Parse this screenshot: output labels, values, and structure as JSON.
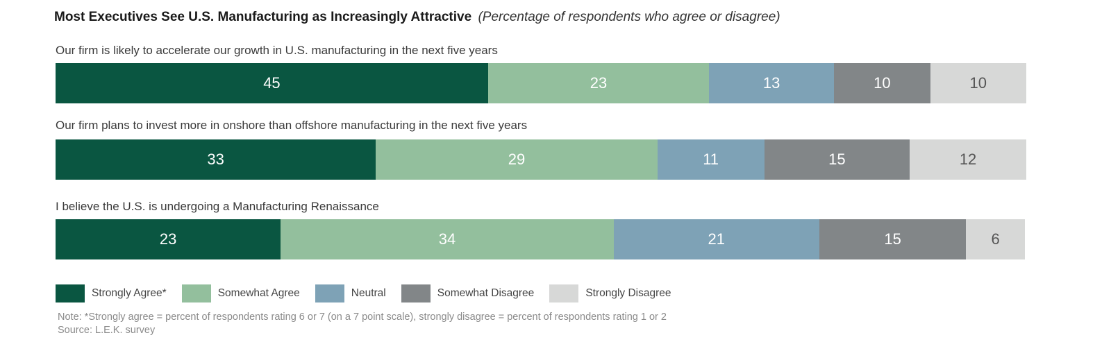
{
  "title": "Most Executives See U.S. Manufacturing as Increasingly Attractive",
  "subtitle": "(Percentage of respondents who agree or disagree)",
  "chart_data": {
    "type": "bar",
    "orientation": "horizontal",
    "stacked": true,
    "categories": [
      "Our firm is likely to accelerate our growth in U.S. manufacturing in the next five years",
      "Our firm plans to invest more in onshore than offshore manufacturing in the next five years",
      "I believe the U.S. is undergoing a Manufacturing Renaissance"
    ],
    "series": [
      {
        "name": "Strongly Agree*",
        "color": "#0a5641",
        "text_color": "#ffffff",
        "values": [
          45,
          33,
          23
        ]
      },
      {
        "name": "Somewhat Agree",
        "color": "#93bf9d",
        "text_color": "#ffffff",
        "values": [
          23,
          29,
          34
        ]
      },
      {
        "name": "Neutral",
        "color": "#7ea2b6",
        "text_color": "#ffffff",
        "values": [
          13,
          11,
          21
        ]
      },
      {
        "name": "Somewhat Disagree",
        "color": "#828688",
        "text_color": "#ffffff",
        "values": [
          10,
          15,
          15
        ]
      },
      {
        "name": "Strongly Disagree",
        "color": "#d7d8d7",
        "text_color": "#555555",
        "values": [
          10,
          12,
          6
        ]
      }
    ],
    "legend_position": "bottom-left"
  },
  "note": "Note: *Strongly agree = percent of respondents rating 6 or 7 (on a 7 point scale), strongly disagree = percent of respondents rating 1 or 2",
  "source": "Source: L.E.K. survey"
}
